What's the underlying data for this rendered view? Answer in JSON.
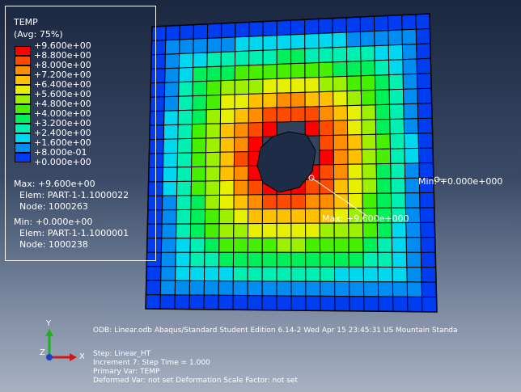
{
  "legend": {
    "title": "TEMP",
    "subtitle": "(Avg: 75%)",
    "ticks": [
      "+9.600e+00",
      "+8.800e+00",
      "+8.000e+00",
      "+7.200e+00",
      "+6.400e+00",
      "+5.600e+00",
      "+4.800e+00",
      "+4.000e+00",
      "+3.200e+00",
      "+2.400e+00",
      "+1.600e+00",
      "+8.000e-01",
      "+0.000e+00"
    ],
    "colors": [
      "#ff0000",
      "#ff4b00",
      "#ff8d00",
      "#ffc000",
      "#e6f000",
      "#9cf000",
      "#46f000",
      "#00f05a",
      "#00f0b4",
      "#00d8f0",
      "#008cf0",
      "#003cf0",
      "#0000ff"
    ],
    "max_line": "Max: +9.600e+00",
    "max_elem": "Elem: PART-1-1.1000022",
    "max_node": "Node: 1000263",
    "min_line": "Min: +0.000e+00",
    "min_elem": "Elem: PART-1-1.1000001",
    "min_node": "Node: 1000238"
  },
  "overlay": {
    "max_label": "Max: +9.600e+000",
    "min_label": "Min: +0.000e+000"
  },
  "triad": {
    "y": "Y",
    "z": "Z",
    "x": "X"
  },
  "status": {
    "line1": "ODB: Linear.odb    Abaqus/Standard Student Edition 6.14-2    Wed Apr 15 23:45:31 US Mountain Standa",
    "line2": "Step: Linear_HT",
    "line3": "Increment     7: Step Time =    1.000",
    "line4": "Primary Var: TEMP",
    "line5": "Deformed Var: not set   Deformation Scale Factor: not set"
  }
}
